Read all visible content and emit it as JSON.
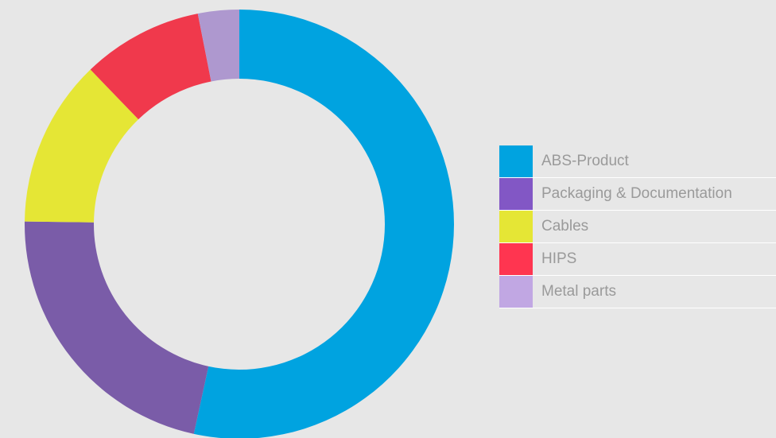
{
  "chart_data": {
    "type": "pie",
    "donut": true,
    "legend_position": "right",
    "slices": [
      {
        "label": "ABS-Product",
        "value": 53.4,
        "color": "#00a3e0",
        "legend_color": "#00a3e0"
      },
      {
        "label": "Packaging & Documentation",
        "value": 21.8,
        "color": "#7a5ca8",
        "legend_color": "#8257c5"
      },
      {
        "label": "Cables",
        "value": 12.6,
        "color": "#e5e635",
        "legend_color": "#e5e635"
      },
      {
        "label": "HIPS",
        "value": 9.1,
        "color": "#f0394c",
        "legend_color": "#ff3550"
      },
      {
        "label": "Metal parts",
        "value": 3.1,
        "color": "#ae98cf",
        "legend_color": "#c1a7e3"
      }
    ]
  }
}
